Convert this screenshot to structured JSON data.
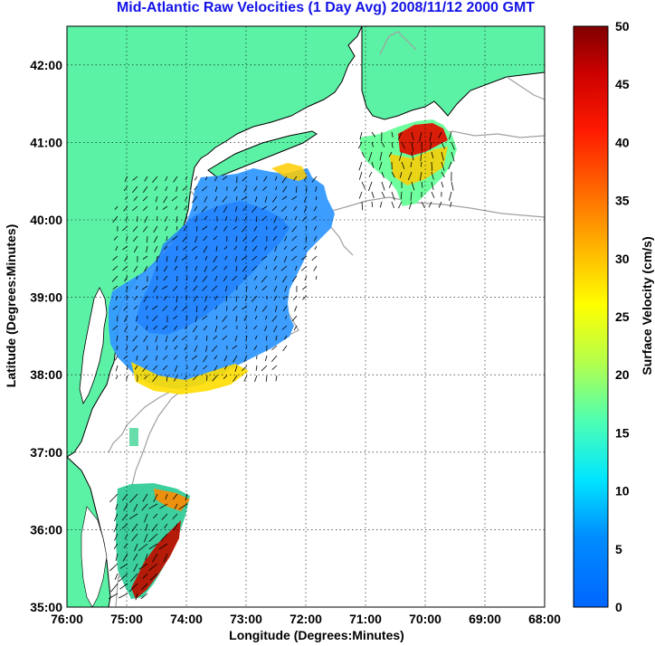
{
  "title": "Mid-Atlantic Raw Velocities (1 Day Avg) 2008/11/12 2000 GMT",
  "x_axis": {
    "label": "Longitude (Degrees:Minutes)",
    "ticks": [
      "76:00",
      "75:00",
      "74:00",
      "73:00",
      "72:00",
      "71:00",
      "70:00",
      "69:00",
      "68:00"
    ]
  },
  "y_axis": {
    "label": "Latitude (Degrees:Minutes)",
    "ticks": [
      "35:00",
      "36:00",
      "37:00",
      "38:00",
      "39:00",
      "40:00",
      "41:00",
      "42:00"
    ]
  },
  "colorbar": {
    "label": "Surface Velocity (cm/s)",
    "ticks": [
      "0",
      "5",
      "10",
      "15",
      "20",
      "25",
      "30",
      "35",
      "40",
      "45",
      "50"
    ],
    "range": [
      0,
      50
    ]
  },
  "map": {
    "lon_range": [
      -76,
      -68
    ],
    "lat_range": [
      35,
      42.5
    ],
    "grid": "dotted",
    "land_color": "#5cf2a6",
    "ocean_color": "#ffffff",
    "bathymetry_color": "#a0a0a0"
  }
}
